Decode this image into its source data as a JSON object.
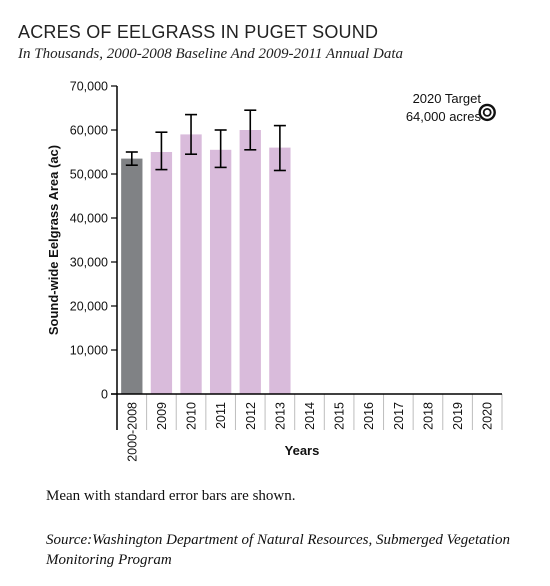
{
  "chart_data": {
    "type": "bar",
    "title": "ACRES OF EELGRASS IN PUGET SOUND",
    "subtitle": "In Thousands, 2000-2008 Baseline And 2009-2011 Annual Data",
    "xlabel": "Years",
    "ylabel": "Sound-wide Eelgrass Area (ac)",
    "ylim": [
      0,
      70000
    ],
    "yticks": [
      "0",
      "10,000",
      "20,000",
      "30,000",
      "40,000",
      "50,000",
      "60,000",
      "70,000"
    ],
    "ytick_values": [
      0,
      10000,
      20000,
      30000,
      40000,
      50000,
      60000,
      70000
    ],
    "categories": [
      "2000-2008",
      "2009",
      "2010",
      "2011",
      "2012",
      "2013",
      "2014",
      "2015",
      "2016",
      "2017",
      "2018",
      "2019",
      "2020"
    ],
    "values": [
      53500,
      55000,
      59000,
      55500,
      60000,
      56000,
      null,
      null,
      null,
      null,
      null,
      null,
      null
    ],
    "error_low": [
      52000,
      51000,
      54500,
      51500,
      55500,
      50800,
      null,
      null,
      null,
      null,
      null,
      null,
      null
    ],
    "error_high": [
      55000,
      59500,
      63500,
      60000,
      64500,
      61000,
      null,
      null,
      null,
      null,
      null,
      null,
      null
    ],
    "bar_colors": [
      "#808285",
      "#d9bbdb",
      "#d9bbdb",
      "#d9bbdb",
      "#d9bbdb",
      "#d9bbdb"
    ],
    "target": {
      "label_line1": "2020 Target",
      "label_line2": "64,000 acres",
      "value": 64000,
      "category": "2020"
    },
    "grid": false
  },
  "notes": {
    "error_note": "Mean with standard error bars are shown.",
    "source_label": "Source:",
    "source_text": "Washington Department of Natural Resources, Submerged Vegetation Monitoring Program"
  },
  "colors": {
    "axis": "#000000",
    "baseline_bar": "#808285",
    "annual_bar": "#d9bbdb",
    "gridline": "#bdbdbd"
  }
}
